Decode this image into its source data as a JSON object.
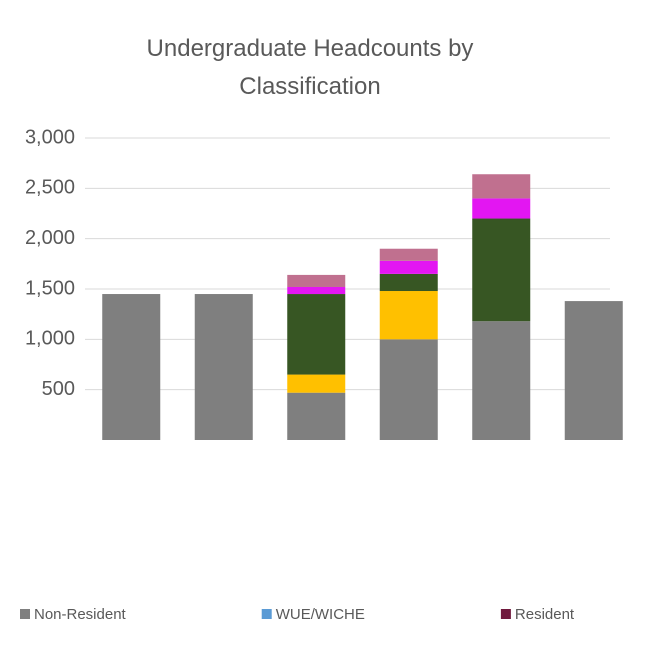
{
  "chart_data": {
    "type": "bar",
    "stacked": true,
    "title": "Undergraduate Headcounts by Classification",
    "categories": [
      null,
      null,
      null,
      null,
      null,
      null
    ],
    "series": [
      {
        "color": "#7f7f7f",
        "values": [
          1450,
          1450,
          470,
          1000,
          1180,
          1380
        ]
      },
      {
        "color": "#ffc000",
        "values": [
          0,
          0,
          180,
          480,
          0,
          0
        ]
      },
      {
        "color": "#375623",
        "values": [
          0,
          0,
          800,
          170,
          1020,
          0
        ]
      },
      {
        "color": "#e316f2",
        "values": [
          0,
          0,
          70,
          130,
          200,
          0
        ]
      },
      {
        "color": "#c0708f",
        "values": [
          0,
          0,
          120,
          120,
          240,
          0
        ]
      }
    ],
    "legend": [
      {
        "name": "Non-Resident",
        "color": "#7f7f7f"
      },
      {
        "name": "WUE/WICHE",
        "color": "#5b9bd5"
      },
      {
        "name": "Resident",
        "color": "#70193d"
      }
    ],
    "ylim": [
      0,
      3000
    ],
    "yticks": [
      {
        "value": 500,
        "label": "500"
      },
      {
        "value": 1000,
        "label": "1,000"
      },
      {
        "value": 1500,
        "label": "1,500"
      },
      {
        "value": 2000,
        "label": "2,000"
      },
      {
        "value": 2500,
        "label": "2,500"
      },
      {
        "value": 3000,
        "label": "3,000"
      }
    ],
    "grid": true
  }
}
